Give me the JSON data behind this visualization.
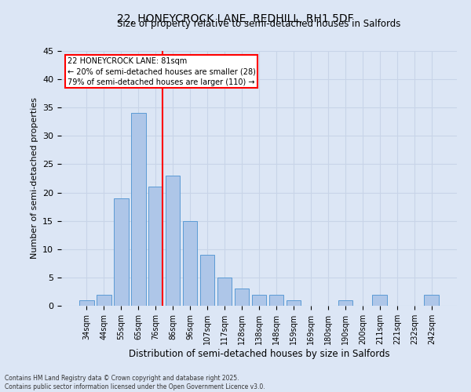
{
  "title_line1": "22, HONEYCROCK LANE, REDHILL, RH1 5DF",
  "title_line2": "Size of property relative to semi-detached houses in Salfords",
  "xlabel": "Distribution of semi-detached houses by size in Salfords",
  "ylabel": "Number of semi-detached properties",
  "bin_labels": [
    "34sqm",
    "44sqm",
    "55sqm",
    "65sqm",
    "76sqm",
    "86sqm",
    "96sqm",
    "107sqm",
    "117sqm",
    "128sqm",
    "138sqm",
    "148sqm",
    "159sqm",
    "169sqm",
    "180sqm",
    "190sqm",
    "200sqm",
    "211sqm",
    "221sqm",
    "232sqm",
    "242sqm"
  ],
  "bar_heights": [
    1,
    2,
    19,
    34,
    21,
    23,
    15,
    9,
    5,
    3,
    2,
    2,
    1,
    0,
    0,
    1,
    0,
    2,
    0,
    0,
    2
  ],
  "bar_color": "#aec6e8",
  "bar_edge_color": "#5b9bd5",
  "grid_color": "#c8d4e8",
  "background_color": "#dce6f5",
  "red_line_x": 4.4,
  "property_label": "22 HONEYCROCK LANE: 81sqm",
  "annotation_line1": "← 20% of semi-detached houses are smaller (28)",
  "annotation_line2": "79% of semi-detached houses are larger (110) →",
  "ylim": [
    0,
    45
  ],
  "yticks": [
    0,
    5,
    10,
    15,
    20,
    25,
    30,
    35,
    40,
    45
  ],
  "footnote_line1": "Contains HM Land Registry data © Crown copyright and database right 2025.",
  "footnote_line2": "Contains public sector information licensed under the Open Government Licence v3.0."
}
